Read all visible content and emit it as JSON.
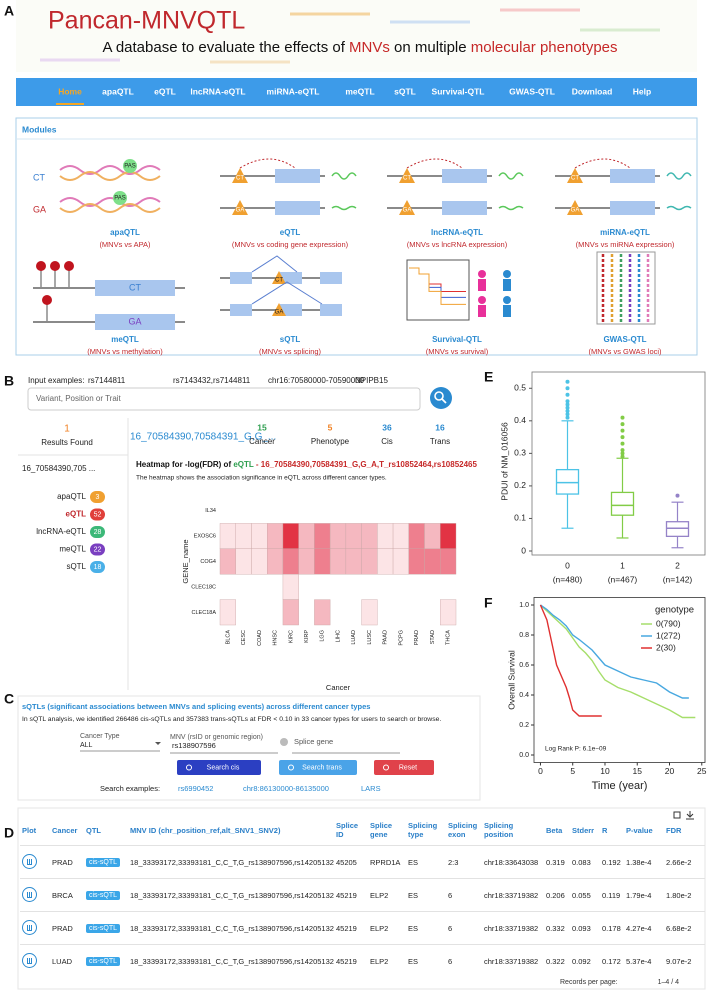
{
  "panel_labels": [
    "A",
    "B",
    "C",
    "D",
    "E",
    "F"
  ],
  "header": {
    "logo": "Pancan-MNVQTL",
    "tagline": [
      {
        "text": "A database to evaluate the effects of ",
        "color": "#111111"
      },
      {
        "text": "MNVs",
        "color": "#c62828"
      },
      {
        "text": " on multiple ",
        "color": "#111111"
      },
      {
        "text": "molecular phenotypes",
        "color": "#c62828"
      }
    ]
  },
  "nav": {
    "items": [
      "Home",
      "apaQTL",
      "eQTL",
      "lncRNA-eQTL",
      "miRNA-eQTL",
      "meQTL",
      "sQTL",
      "Survival-QTL",
      "GWAS-QTL",
      "Download",
      "Help"
    ],
    "active": 0,
    "color": "#3d9be9",
    "active_color": "#f5a623"
  },
  "modules": {
    "title": "Modules",
    "icon_text": [
      "CT",
      "GA",
      "PAS"
    ],
    "items": [
      {
        "name": "apaQTL",
        "desc": "(MNVs vs APA)"
      },
      {
        "name": "eQTL",
        "desc": "(MNVs vs coding gene expression)"
      },
      {
        "name": "lncRNA-eQTL",
        "desc": "(MNVs vs lncRNA expression)"
      },
      {
        "name": "miRNA-eQTL",
        "desc": "(MNVs vs miRNA expression)"
      },
      {
        "name": "meQTL",
        "desc": "(MNVs vs methylation)"
      },
      {
        "name": "sQTL",
        "desc": "(MNVs vs splicing)"
      },
      {
        "name": "Survival-QTL",
        "desc": "(MNVs vs survival)"
      },
      {
        "name": "GWAS-QTL",
        "desc": "(MNVs vs GWAS loci)"
      }
    ]
  },
  "search": {
    "examples_label": "Input examples:",
    "examples": [
      "rs7144811",
      "rs7143432,rs7144811",
      "chr16:70580000-70590000",
      "NPIPB15"
    ],
    "placeholder": "Variant, Position or Trait",
    "results_count": "1",
    "results_label": "Results Found",
    "result_id": "16_70584390,705 ...",
    "qtl_counts": [
      {
        "name": "apaQTL",
        "count": "3",
        "color": "#f0a030"
      },
      {
        "name": "eQTL",
        "count": "52",
        "color": "#e0403a"
      },
      {
        "name": "lncRNA-eQTL",
        "count": "28",
        "color": "#3cb878"
      },
      {
        "name": "meQTL",
        "count": "22",
        "color": "#7a3fc0"
      },
      {
        "name": "sQTL",
        "count": "18",
        "color": "#4ab0e8"
      }
    ],
    "summary_title": "16_70584390,70584391_G,G_...",
    "stats": [
      {
        "value": "15",
        "label": "Cancer",
        "color": "#2e9e4f"
      },
      {
        "value": "5",
        "label": "Phenotype",
        "color": "#f07f20"
      },
      {
        "value": "36",
        "label": "Cis",
        "color": "#2a8ad0"
      },
      {
        "value": "16",
        "label": "Trans",
        "color": "#2a8ad0"
      }
    ],
    "heatmap_title": [
      {
        "text": "Heatmap for -log(FDR) of ",
        "color": "#111111"
      },
      {
        "text": "eQTL",
        "color": "#2e9e4f"
      },
      {
        "text": " - 16_70584390,70584391_G,G_A,T_rs10852464,rs10852465",
        "color": "#c62828"
      }
    ],
    "heatmap_note": "The heatmap shows the association significance in eQTL across different cancer types.",
    "heatmap": {
      "type": "heatmap",
      "ylabel": "GENE_name",
      "xlabel": "Cancer",
      "rows": [
        "IL34",
        "EXOSC6",
        "COG4",
        "CLEC18C",
        "CLEC18A"
      ],
      "columns": [
        "BLCA",
        "CESC",
        "COAD",
        "HNSC",
        "KIRC",
        "KIRP",
        "LGG",
        "LIHC",
        "LUAD",
        "LUSC",
        "PAAD",
        "PCPG",
        "PRAD",
        "STAD",
        "THCA"
      ],
      "values": [
        [
          null,
          null,
          null,
          null,
          null,
          null,
          null,
          null,
          null,
          null,
          null,
          null,
          null,
          null,
          null
        ],
        [
          1,
          1,
          1,
          2,
          4,
          2,
          3,
          2,
          2,
          2,
          1,
          1,
          3,
          2,
          4
        ],
        [
          2,
          1,
          1,
          2,
          3,
          2,
          3,
          2,
          2,
          2,
          1,
          1,
          3,
          3,
          3
        ],
        [
          null,
          null,
          null,
          null,
          1,
          null,
          null,
          null,
          null,
          null,
          null,
          null,
          null,
          null,
          null
        ],
        [
          1,
          null,
          null,
          null,
          2,
          null,
          2,
          null,
          null,
          1,
          null,
          null,
          null,
          null,
          1
        ]
      ],
      "colors": [
        "#ffffff",
        "#fce4e6",
        "#f5b8c0",
        "#ee7f8e",
        "#e23344"
      ]
    }
  },
  "sqtl": {
    "title": "sQTLs (significant associations between MNVs and splicing events) across different cancer types",
    "intro": "In sQTL analysis, we identified 266486 cis-sQTLs and 357383 trans-sQTLs at FDR < 0.10 in 33 cancer types for users to search or browse.",
    "cancer_label": "Cancer Type",
    "cancer_value": "ALL",
    "mnv_label": "MNV (rsID or genomic region)",
    "mnv_value": "rs138907596",
    "gene_placeholder": "Splice gene",
    "buttons": [
      {
        "text": "Search cis",
        "color": "#2b3fc2"
      },
      {
        "text": "Search trans",
        "color": "#4aa3e8"
      },
      {
        "text": "Reset",
        "color": "#e0424a"
      }
    ],
    "examples_label": "Search examples:",
    "examples": [
      "rs6990452",
      "chr8:86130000-86135000",
      "LARS"
    ]
  },
  "table": {
    "headers": [
      "Plot",
      "Cancer",
      "QTL",
      "MNV ID (chr_position_ref,alt_SNV1_SNV2)",
      "Splice ID",
      "Splice gene",
      "Splicing type",
      "Splicing exon",
      "Splicing position",
      "Beta",
      "Stderr",
      "R",
      "P-value",
      "FDR"
    ],
    "rows": [
      [
        "PRAD",
        "cis-sQTL",
        "18_33393172,33393181_C,C_T,G_rs138907596,rs142051320",
        "45205",
        "RPRD1A",
        "ES",
        "2:3",
        "chr18:33643038",
        "0.319",
        "0.083",
        "0.192",
        "1.38e-4",
        "2.66e-2"
      ],
      [
        "BRCA",
        "cis-sQTL",
        "18_33393172,33393181_C,C_T,G_rs138907596,rs142051320",
        "45219",
        "ELP2",
        "ES",
        "6",
        "chr18:33719382",
        "0.206",
        "0.055",
        "0.119",
        "1.79e-4",
        "1.80e-2"
      ],
      [
        "PRAD",
        "cis-sQTL",
        "18_33393172,33393181_C,C_T,G_rs138907596,rs142051320",
        "45219",
        "ELP2",
        "ES",
        "6",
        "chr18:33719382",
        "0.332",
        "0.093",
        "0.178",
        "4.27e-4",
        "6.68e-2"
      ],
      [
        "LUAD",
        "cis-sQTL",
        "18_33393172,33393181_C,C_T,G_rs138907596,rs142051320",
        "45219",
        "ELP2",
        "ES",
        "6",
        "chr18:33719382",
        "0.322",
        "0.092",
        "0.172",
        "5.37e-4",
        "9.07e-2"
      ]
    ],
    "footer_label": "Records per page:",
    "footer_range": "1–4 / 4"
  },
  "chart_data": [
    {
      "type": "box",
      "ylabel": "PDUI of NM_016056",
      "categories": [
        "0",
        "1",
        "2"
      ],
      "sublabels": [
        "(n=480)",
        "(n=467)",
        "(n=142)"
      ],
      "colors": [
        "#4cc3e6",
        "#82cc46",
        "#9583c8"
      ],
      "ylim": [
        0,
        0.55
      ],
      "yticks": [
        0,
        0.1,
        0.2,
        0.3,
        0.4,
        0.5
      ],
      "stats": [
        {
          "min": 0.07,
          "q1": 0.175,
          "median": 0.21,
          "q3": 0.25,
          "max": 0.4,
          "outliers": [
            0.41,
            0.42,
            0.43,
            0.44,
            0.45,
            0.46,
            0.48,
            0.5,
            0.52
          ]
        },
        {
          "min": 0.04,
          "q1": 0.11,
          "median": 0.14,
          "q3": 0.18,
          "max": 0.285,
          "outliers": [
            0.29,
            0.3,
            0.31,
            0.33,
            0.35,
            0.37,
            0.39,
            0.41
          ]
        },
        {
          "min": 0.01,
          "q1": 0.045,
          "median": 0.07,
          "q3": 0.09,
          "max": 0.15,
          "outliers": [
            0.17
          ]
        }
      ]
    },
    {
      "type": "line",
      "xlabel": "Time (year)",
      "ylabel": "Overall Survival",
      "legend_title": "genotype",
      "annotation": "Log Rank P: 6.1e−09",
      "xlim": [
        -1,
        25.5
      ],
      "ylim": [
        -0.05,
        1.05
      ],
      "xticks": [
        0,
        5,
        10,
        15,
        20,
        25
      ],
      "yticks": [
        {
          "value": 0,
          "label": "0.0"
        },
        {
          "value": 0.2,
          "label": "0.2"
        },
        {
          "value": 0.4,
          "label": "0.4"
        },
        {
          "value": 0.6,
          "label": "0.6"
        },
        {
          "value": 0.8,
          "label": "0.8"
        },
        {
          "value": 1,
          "label": "1.0"
        }
      ],
      "series": [
        {
          "name": "0(790)",
          "color": "#a6de6a",
          "x": [
            0,
            1,
            2,
            3,
            4,
            5,
            6,
            7,
            8,
            9,
            10,
            12,
            14,
            16,
            18,
            20,
            22,
            24
          ],
          "values": [
            1,
            0.96,
            0.92,
            0.88,
            0.84,
            0.78,
            0.72,
            0.68,
            0.63,
            0.56,
            0.5,
            0.45,
            0.42,
            0.38,
            0.34,
            0.3,
            0.25,
            0.25
          ]
        },
        {
          "name": "1(272)",
          "color": "#48a8e0",
          "x": [
            0,
            1,
            2,
            3,
            4,
            5,
            6,
            8,
            10,
            12,
            14,
            16,
            18,
            20,
            22,
            23
          ],
          "values": [
            1,
            0.97,
            0.93,
            0.9,
            0.86,
            0.8,
            0.77,
            0.7,
            0.6,
            0.56,
            0.52,
            0.5,
            0.48,
            0.42,
            0.38,
            0.38
          ]
        },
        {
          "name": "2(30)",
          "color": "#e03030",
          "x": [
            0,
            1,
            1.5,
            2,
            2.5,
            3,
            3.5,
            4,
            4.5,
            5,
            6,
            9.5
          ],
          "values": [
            1,
            0.9,
            0.8,
            0.7,
            0.6,
            0.55,
            0.5,
            0.45,
            0.38,
            0.3,
            0.26,
            0.26
          ]
        }
      ]
    }
  ]
}
